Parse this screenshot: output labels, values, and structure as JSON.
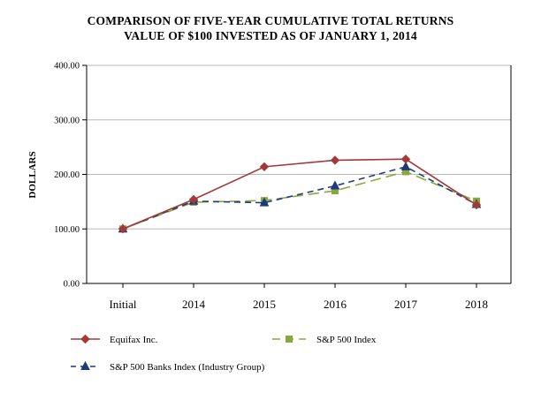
{
  "chart_data": {
    "type": "line",
    "title": "COMPARISON OF FIVE-YEAR CUMULATIVE TOTAL RETURNS",
    "subtitle": "VALUE OF $100 INVESTED AS OF JANUARY 1, 2014",
    "xlabel": "",
    "ylabel": "DOLLARS",
    "categories": [
      "Initial",
      "2014",
      "2015",
      "2016",
      "2017",
      "2018"
    ],
    "ylim": [
      0,
      400
    ],
    "yticks": [
      0,
      100,
      200,
      300,
      400
    ],
    "ytick_labels": [
      "0.00",
      "100.00",
      "200.00",
      "300.00",
      "400.00"
    ],
    "grid": true,
    "legend_position": "bottom",
    "series": [
      {
        "name": "Equifax Inc.",
        "values": [
          100,
          154,
          214,
          226,
          228,
          144
        ],
        "color": "#a23a3a",
        "marker": "diamond",
        "dash": "solid"
      },
      {
        "name": "S&P 500 Index",
        "values": [
          100,
          149,
          152,
          170,
          205,
          151
        ],
        "color": "#8aa83c",
        "marker": "square",
        "dash": "long-dash"
      },
      {
        "name": "S&P 500 Banks Index (Industry Group)",
        "values": [
          100,
          151,
          148,
          179,
          214,
          145
        ],
        "color": "#1f3a7a",
        "marker": "triangle",
        "dash": "dash"
      }
    ]
  }
}
